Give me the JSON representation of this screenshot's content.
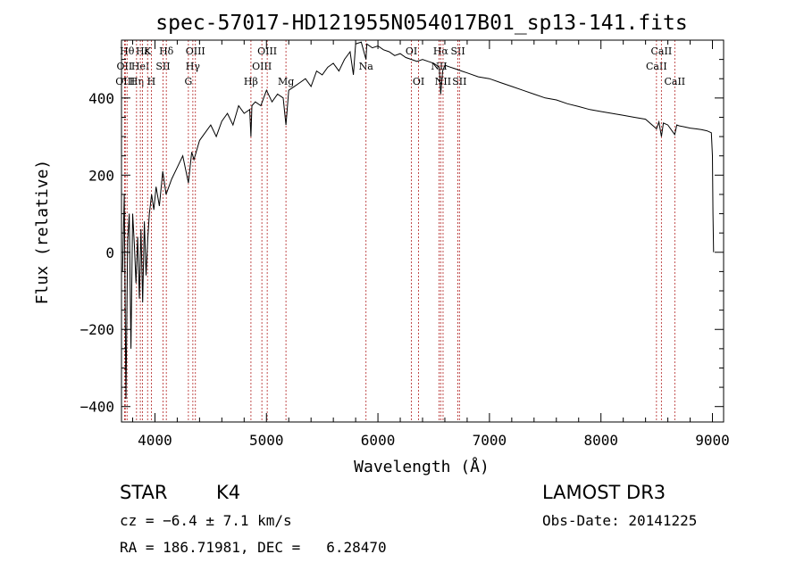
{
  "chart_data": {
    "type": "line",
    "title": "spec-57017-HD121955N054017B01_sp13-141.fits",
    "xlabel": "Wavelength (Å)",
    "ylabel": "Flux (relative)",
    "xlim": [
      3700,
      9100
    ],
    "ylim": [
      -440,
      550
    ],
    "xticks": [
      4000,
      5000,
      6000,
      7000,
      8000,
      9000
    ],
    "xtick_labels": [
      "4000",
      "5000",
      "6000",
      "7000",
      "8000",
      "9000"
    ],
    "yticks": [
      -400,
      -200,
      0,
      200,
      400
    ],
    "ytick_labels": [
      "−400",
      "−200",
      "0",
      "200",
      "400"
    ],
    "series": [
      {
        "name": "flux",
        "x": [
          3710,
          3725,
          3740,
          3755,
          3770,
          3785,
          3800,
          3815,
          3830,
          3845,
          3860,
          3875,
          3890,
          3905,
          3920,
          3935,
          3950,
          3970,
          3990,
          4010,
          4040,
          4070,
          4100,
          4150,
          4200,
          4250,
          4300,
          4330,
          4350,
          4400,
          4450,
          4500,
          4550,
          4600,
          4650,
          4700,
          4750,
          4800,
          4850,
          4861,
          4870,
          4900,
          4950,
          5000,
          5050,
          5100,
          5150,
          5175,
          5200,
          5250,
          5300,
          5350,
          5400,
          5450,
          5500,
          5550,
          5600,
          5650,
          5700,
          5750,
          5780,
          5800,
          5850,
          5893,
          5900,
          5950,
          6000,
          6050,
          6100,
          6150,
          6200,
          6250,
          6300,
          6350,
          6400,
          6450,
          6500,
          6550,
          6563,
          6580,
          6600,
          6650,
          6700,
          6750,
          6800,
          6900,
          7000,
          7100,
          7200,
          7300,
          7400,
          7500,
          7600,
          7700,
          7800,
          7900,
          8000,
          8100,
          8200,
          8300,
          8400,
          8498,
          8520,
          8542,
          8560,
          8600,
          8662,
          8680,
          8700,
          8750,
          8800,
          8850,
          8900,
          8950,
          8990,
          9000,
          9005,
          9010
        ],
        "y": [
          -50,
          150,
          -380,
          30,
          100,
          -250,
          100,
          20,
          -80,
          40,
          -120,
          60,
          -130,
          80,
          -60,
          30,
          100,
          150,
          110,
          170,
          120,
          210,
          150,
          190,
          220,
          250,
          180,
          260,
          240,
          290,
          310,
          330,
          300,
          340,
          360,
          330,
          380,
          360,
          370,
          300,
          380,
          390,
          380,
          420,
          390,
          410,
          400,
          330,
          420,
          430,
          440,
          450,
          430,
          470,
          460,
          480,
          490,
          470,
          500,
          520,
          460,
          540,
          545,
          500,
          540,
          530,
          535,
          525,
          520,
          510,
          515,
          505,
          500,
          495,
          500,
          495,
          490,
          480,
          410,
          470,
          485,
          480,
          475,
          470,
          465,
          455,
          450,
          440,
          430,
          420,
          410,
          400,
          395,
          385,
          378,
          370,
          365,
          360,
          355,
          350,
          345,
          320,
          338,
          300,
          335,
          330,
          305,
          330,
          328,
          325,
          322,
          320,
          318,
          315,
          310,
          250,
          100,
          0
        ]
      }
    ],
    "line_markers": [
      {
        "wl": 3750,
        "label": "Hθ",
        "row": 1
      },
      {
        "wl": 3727,
        "label": "OII",
        "row": 2
      },
      {
        "wl": 3734,
        "label": "OIII",
        "row": 3
      },
      {
        "wl": 3835,
        "label": "Hη",
        "row": 3
      },
      {
        "wl": 3869,
        "label": "HeI",
        "row": 2
      },
      {
        "wl": 3889,
        "label": "Hε",
        "row": 1
      },
      {
        "wl": 3934,
        "label": "K",
        "row": 1
      },
      {
        "wl": 3968,
        "label": "H",
        "row": 3
      },
      {
        "wl": 4072,
        "label": "SII",
        "row": 2
      },
      {
        "wl": 4102,
        "label": "Hδ",
        "row": 1
      },
      {
        "wl": 4300,
        "label": "G",
        "row": 3
      },
      {
        "wl": 4340,
        "label": "Hγ",
        "row": 2
      },
      {
        "wl": 4363,
        "label": "OIII",
        "row": 1
      },
      {
        "wl": 4861,
        "label": "Hβ",
        "row": 3
      },
      {
        "wl": 4959,
        "label": "OIII",
        "row": 2
      },
      {
        "wl": 5007,
        "label": "OIII",
        "row": 1
      },
      {
        "wl": 5175,
        "label": "Mg",
        "row": 3
      },
      {
        "wl": 5893,
        "label": "Na",
        "row": 2
      },
      {
        "wl": 6300,
        "label": "OI",
        "row": 1
      },
      {
        "wl": 6364,
        "label": "OI",
        "row": 3
      },
      {
        "wl": 6548,
        "label": "NII",
        "row": 2
      },
      {
        "wl": 6563,
        "label": "Hα",
        "row": 1
      },
      {
        "wl": 6584,
        "label": "NII",
        "row": 3
      },
      {
        "wl": 6717,
        "label": "SII",
        "row": 1
      },
      {
        "wl": 6731,
        "label": "SII",
        "row": 3
      },
      {
        "wl": 8498,
        "label": "CaII",
        "row": 2
      },
      {
        "wl": 8542,
        "label": "CaII",
        "row": 1
      },
      {
        "wl": 8662,
        "label": "CaII",
        "row": 3
      }
    ]
  },
  "info": {
    "object_class": "STAR",
    "subclass": "K4",
    "survey": "LAMOST DR3",
    "cz": "cz = −6.4 ± 7.1 km/s",
    "obs_date": "Obs-Date: 20141225",
    "coords": "RA = 186.71981, DEC =   6.28470"
  },
  "colors": {
    "marker": "#b22222",
    "line": "#000000",
    "axis": "#000000"
  }
}
